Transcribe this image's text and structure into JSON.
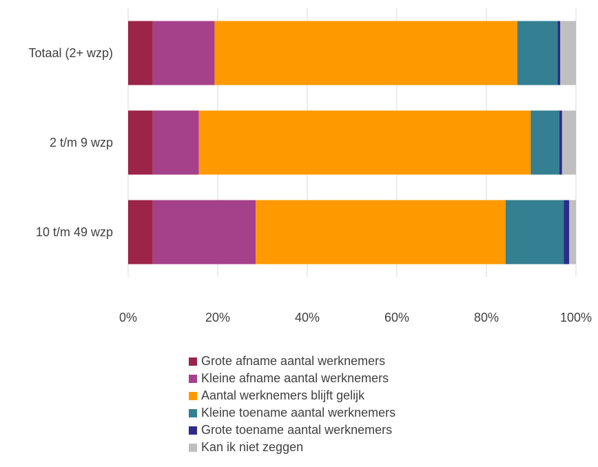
{
  "chart_data": {
    "type": "bar",
    "orientation": "horizontal",
    "stacked": true,
    "categories": [
      "Totaal (2+ wzp)",
      "2 t/m 9 wzp",
      "10 t/m 49 wzp"
    ],
    "series": [
      {
        "name": "Grote afname aantal werknemers",
        "color": "#9b2448",
        "values": [
          5.5,
          5.5,
          5.5
        ]
      },
      {
        "name": "Kleine afname aantal werknemers",
        "color": "#a5418a",
        "values": [
          13.8,
          10.3,
          23.0
        ]
      },
      {
        "name": "Aantal werknemers blijft gelijk",
        "color": "#ff9900",
        "values": [
          67.6,
          74.1,
          55.8
        ]
      },
      {
        "name": "Kleine toename aantal werknemers",
        "color": "#347f91",
        "values": [
          9.0,
          6.4,
          13.0
        ]
      },
      {
        "name": "Grote toename aantal werknemers",
        "color": "#2d2a8a",
        "values": [
          0.6,
          0.6,
          1.2
        ]
      },
      {
        "name": "Kan ik niet zeggen",
        "color": "#bfbfbf",
        "values": [
          3.5,
          3.1,
          1.5
        ]
      }
    ],
    "xlim": [
      0,
      100
    ],
    "x_ticks": [
      "0%",
      "20%",
      "40%",
      "60%",
      "80%",
      "100%"
    ],
    "grid": true,
    "legend_position": "bottom",
    "title": "",
    "xlabel": "",
    "ylabel": ""
  }
}
